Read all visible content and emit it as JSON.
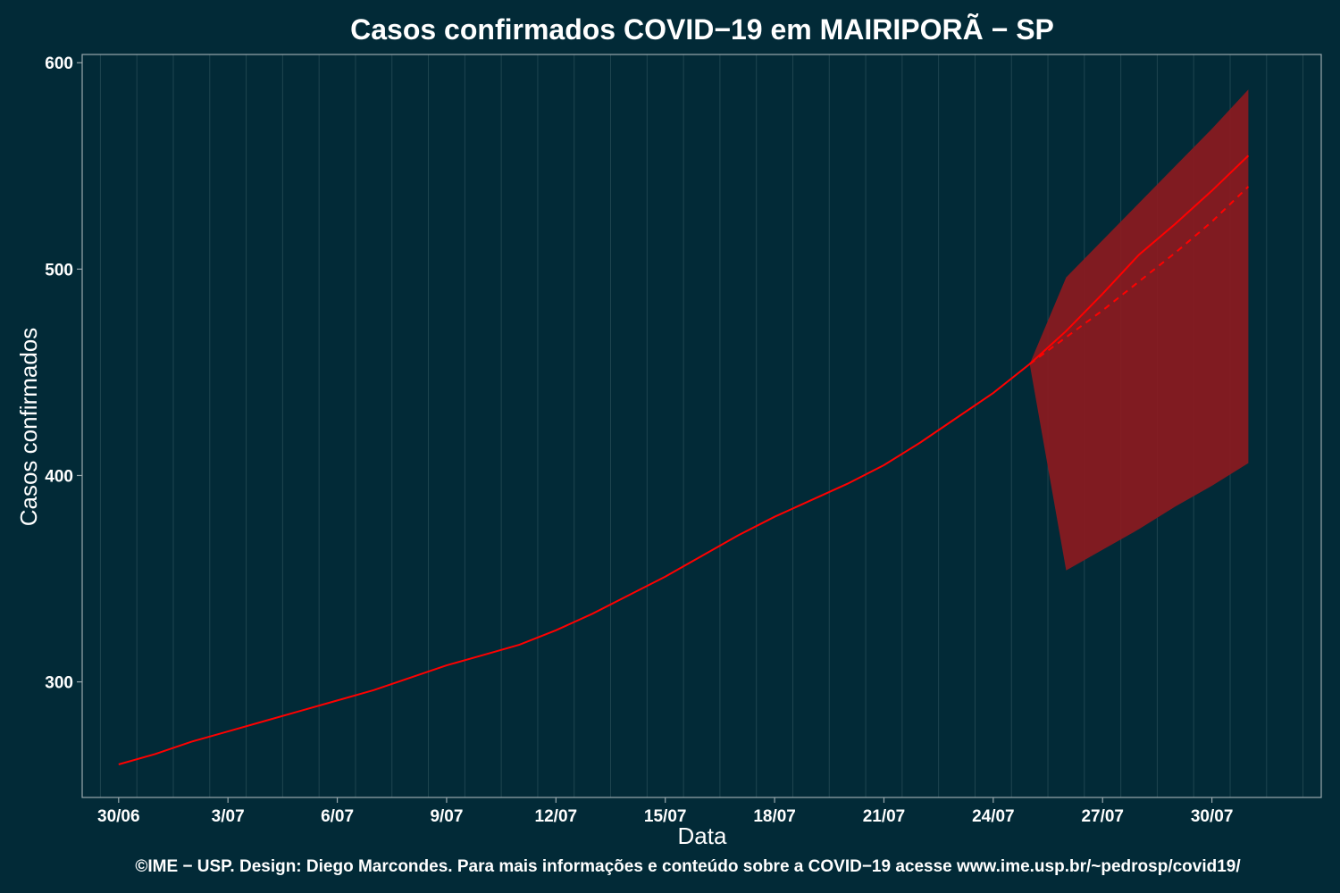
{
  "chart_data": {
    "type": "line",
    "title": "Casos confirmados COVID−19 em MAIRIPORÃ − SP",
    "xlabel": "Data",
    "ylabel": "Casos confirmados",
    "caption": "©IME − USP. Design: Diego Marcondes. Para mais informações e conteúdo sobre a COVID−19 acesse www.ime.usp.br/~pedrosp/covid19/",
    "x_ticks": [
      "30/06",
      "3/07",
      "6/07",
      "9/07",
      "12/07",
      "15/07",
      "18/07",
      "21/07",
      "24/07",
      "27/07",
      "30/07"
    ],
    "y_ticks": [
      300,
      400,
      500,
      600
    ],
    "ylim": [
      244,
      604
    ],
    "grid": true,
    "colors": {
      "background": "#022a37",
      "line": "#ff0000",
      "band": "#8b1a1f",
      "grid": "#1f4550",
      "axis": "#9aa8ad"
    },
    "series": [
      {
        "x": [
          "30/06",
          "1/07",
          "2/07",
          "3/07",
          "4/07",
          "5/07",
          "6/07",
          "7/07",
          "8/07",
          "9/07",
          "10/07",
          "11/07",
          "12/07",
          "13/07",
          "14/07",
          "15/07",
          "16/07",
          "17/07",
          "18/07",
          "19/07",
          "20/07",
          "21/07",
          "22/07",
          "23/07",
          "24/07",
          "25/07",
          "26/07",
          "27/07",
          "28/07",
          "29/07",
          "30/07",
          "31/07"
        ],
        "values": [
          260,
          265,
          271,
          276,
          281,
          286,
          291,
          296,
          302,
          308,
          313,
          318,
          325,
          333,
          342,
          351,
          361,
          371,
          380,
          388,
          396,
          405,
          416,
          428,
          440,
          454,
          470,
          488,
          507,
          522,
          538,
          555
        ],
        "style": "solid"
      },
      {
        "x": [
          "25/07",
          "26/07",
          "27/07",
          "28/07",
          "29/07",
          "30/07",
          "31/07"
        ],
        "values": [
          454,
          467,
          480,
          494,
          508,
          523,
          540
        ],
        "style": "dashed"
      }
    ],
    "band": {
      "x": [
        "25/07",
        "26/07",
        "27/07",
        "28/07",
        "29/07",
        "30/07",
        "31/07"
      ],
      "lower": [
        454,
        354,
        364,
        374,
        385,
        395,
        406
      ],
      "upper": [
        454,
        496,
        514,
        532,
        550,
        568,
        587
      ]
    }
  }
}
